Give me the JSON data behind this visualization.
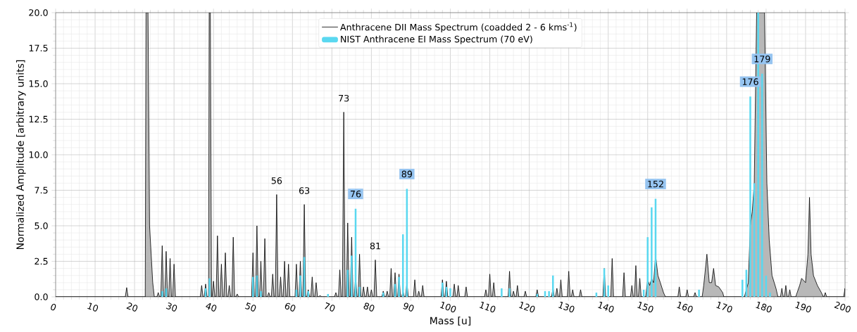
{
  "chart_data": {
    "type": "area",
    "xlabel": "Mass [u]",
    "ylabel": "Normalized Amplitude [arbitrary units]",
    "xlim": [
      0,
      200
    ],
    "ylim": [
      0,
      20
    ],
    "xticks": [
      0,
      10,
      20,
      30,
      40,
      50,
      60,
      70,
      80,
      90,
      100,
      110,
      120,
      130,
      140,
      150,
      160,
      170,
      180,
      190,
      200
    ],
    "yticks": [
      {
        "value": 0,
        "label": "0.0"
      },
      {
        "value": 2.5,
        "label": "2.5"
      },
      {
        "value": 5,
        "label": "5.0"
      },
      {
        "value": 7.5,
        "label": "7.5"
      },
      {
        "value": 10,
        "label": "10.0"
      },
      {
        "value": 12.5,
        "label": "12.5"
      },
      {
        "value": 15,
        "label": "15.0"
      },
      {
        "value": 17.5,
        "label": "17.5"
      },
      {
        "value": 20,
        "label": "20.0"
      }
    ],
    "grid": true,
    "legend": "top",
    "series": [
      {
        "name": "Anthracene DII Mass Spectrum (coadded 2 - 6 kms$^{-1}$)",
        "color": "#000000",
        "x": [
          0,
          17.65,
          18,
          18.35,
          22.7,
          22.9,
          23.4,
          23.8,
          24.1,
          24.3,
          24.6,
          25,
          25.65,
          26,
          26.35,
          26.65,
          27,
          27.35,
          27.65,
          28,
          28.35,
          28.65,
          29,
          29.35,
          29.65,
          30,
          30.35,
          36.65,
          37,
          37.35,
          37.65,
          38,
          38.35,
          38.75,
          38.9,
          39.2,
          39.5,
          39.65,
          40,
          40.35,
          40.65,
          41,
          41.35,
          41.65,
          42,
          42.35,
          42.65,
          43,
          43.35,
          43.65,
          44,
          44.35,
          44.65,
          45,
          45.35,
          45.65,
          46,
          46.35,
          49.65,
          50,
          50.35,
          50.65,
          51,
          51.35,
          51.65,
          52,
          52.35,
          52.65,
          53,
          53.35,
          53.65,
          54,
          54.35,
          54.65,
          55,
          55.35,
          55.65,
          56,
          56.35,
          56.65,
          57,
          57.35,
          57.65,
          58,
          58.35,
          58.65,
          59,
          59.35,
          60.65,
          61,
          61.35,
          61.65,
          62,
          62.35,
          62.65,
          63,
          63.35,
          63.65,
          64,
          64.35,
          64.65,
          65,
          65.35,
          65.65,
          66,
          66.35,
          66.65,
          67,
          67.35,
          70.65,
          71,
          71.35,
          71.65,
          72,
          72.35,
          72.65,
          73,
          73.35,
          73.65,
          74,
          74.35,
          74.65,
          75,
          75.35,
          75.65,
          76,
          76.35,
          76.65,
          77,
          77.35,
          77.65,
          78,
          78.35,
          78.65,
          79,
          79.35,
          79.65,
          80,
          80.35,
          80.65,
          81,
          81.35,
          82.65,
          83,
          83.35,
          83.65,
          84,
          84.35,
          84.65,
          85,
          85.35,
          85.65,
          86,
          86.35,
          86.65,
          87,
          87.35,
          87.65,
          88,
          88.35,
          88.65,
          89,
          89.35,
          90.65,
          91,
          91.35,
          91.65,
          92,
          92.35,
          92.65,
          93,
          93.35,
          97.65,
          98,
          98.35,
          98.65,
          99,
          99.35,
          100.65,
          101,
          101.35,
          101.65,
          102,
          102.35,
          103.65,
          104,
          104.35,
          108.65,
          109,
          109.35,
          109.65,
          110,
          110.35,
          110.65,
          111,
          111.35,
          114.65,
          115,
          115.35,
          115.65,
          116,
          116.35,
          116.65,
          117,
          117.35,
          118.65,
          119,
          119.35,
          121.65,
          122,
          122.35,
          125.65,
          126,
          126.35,
          126.65,
          127,
          127.35,
          127.65,
          128,
          128.35,
          129.65,
          130,
          130.35,
          130.65,
          131,
          131.35,
          132.65,
          133,
          133.35,
          138.65,
          139,
          139.35,
          140.65,
          141,
          141.35,
          143.65,
          144,
          144.35,
          145.65,
          146,
          146.35,
          146.65,
          147,
          147.35,
          147.65,
          148,
          148.35,
          149.5,
          150,
          150.5,
          151,
          151.5,
          152,
          152.6,
          153.2,
          154,
          154.5,
          157.65,
          158,
          158.35,
          159.65,
          160,
          160.35,
          161.65,
          162,
          162.35,
          163.8,
          164.2,
          165,
          165.6,
          166.2,
          166.7,
          167.2,
          168,
          169,
          169.3,
          174.5,
          175.5,
          176,
          176.5,
          177,
          177.6,
          179.6,
          180.2,
          180.8,
          181.5,
          182.5,
          183,
          183.65,
          184,
          184.35,
          184.65,
          185,
          185.35,
          185.65,
          186,
          186.35,
          187.5,
          188.5,
          189,
          190,
          190.6,
          191,
          191.4,
          192,
          193,
          194,
          194.5,
          194.65,
          195,
          195.35,
          199.65,
          200
        ],
        "values": [
          0,
          0,
          0.65,
          0,
          0,
          20,
          20,
          5,
          3.5,
          2.5,
          1.0,
          0,
          0,
          0.3,
          0,
          0,
          3.6,
          0,
          0,
          3.2,
          0,
          0,
          2.7,
          0,
          0,
          2.3,
          0,
          0,
          0.8,
          0,
          0,
          0.9,
          0,
          0,
          20,
          20,
          0,
          0,
          1.1,
          0,
          0,
          4.3,
          0,
          0,
          2.3,
          0,
          0,
          3.1,
          0,
          0,
          0.8,
          0,
          0,
          4.2,
          0,
          0,
          0.2,
          0,
          0,
          3.1,
          0,
          0,
          5.0,
          0,
          0,
          2.5,
          0,
          0,
          4.1,
          0,
          0,
          0.3,
          0,
          0,
          1.6,
          0,
          0,
          7.2,
          0,
          0,
          1.4,
          0,
          0,
          2.5,
          0,
          0,
          2.3,
          0,
          0,
          2.3,
          0,
          0,
          2.5,
          0,
          0,
          6.5,
          0,
          0,
          0.5,
          0,
          0,
          1.4,
          0,
          0,
          1.0,
          0,
          0,
          0.1,
          0,
          0,
          0.3,
          0,
          0,
          1.9,
          0,
          0,
          13.0,
          0,
          0,
          5.2,
          0,
          0,
          4.2,
          0,
          0,
          1.4,
          0,
          0,
          3.0,
          0,
          0,
          0.7,
          0,
          0,
          0.7,
          0,
          0,
          0.5,
          0,
          0,
          2.6,
          0,
          0,
          0.4,
          0,
          0,
          0.4,
          0,
          0,
          2.0,
          0,
          0,
          1.7,
          0,
          0,
          1.6,
          0,
          0,
          0.4,
          0,
          0,
          1.0,
          0,
          0,
          1.2,
          0,
          0,
          0.4,
          0,
          0,
          0.8,
          0,
          0,
          1.2,
          0,
          0,
          1.1,
          0,
          0,
          0.9,
          0,
          0,
          0.8,
          0,
          0,
          0.7,
          0,
          0,
          0.5,
          0,
          0,
          1.6,
          0,
          0,
          1.0,
          0,
          0,
          1.8,
          0,
          0,
          0.4,
          0,
          0,
          0.8,
          0,
          0,
          0.4,
          0,
          0,
          0.5,
          0,
          0,
          0.6,
          0,
          0,
          0.6,
          0,
          0,
          1.2,
          0,
          0,
          1.8,
          0,
          0,
          0.5,
          0,
          0,
          0.5,
          0,
          0,
          2.0,
          0,
          0,
          2.7,
          0,
          0,
          1.7,
          0,
          0,
          0.8,
          0,
          0,
          2.2,
          0,
          0,
          1.3,
          0,
          0,
          1.2,
          0.8,
          1.3,
          1.0,
          2.9,
          1.5,
          1.0,
          0.3,
          0,
          0,
          0.7,
          0,
          0,
          0.5,
          0,
          0,
          0.3,
          0,
          0,
          0.8,
          3.0,
          1.0,
          1.0,
          2.0,
          0.8,
          0.7,
          0.3,
          0,
          0,
          1.0,
          5.0,
          6.0,
          8.0,
          20,
          20,
          8.0,
          4.0,
          1.5,
          0.6,
          0,
          0,
          0.6,
          0,
          0,
          0.8,
          0,
          0,
          0.5,
          0,
          0,
          0.8,
          1.3,
          1.0,
          3.0,
          7.0,
          3.0,
          1.5,
          0.8,
          0.3,
          0,
          0,
          0.3,
          0,
          0,
          0.6
        ]
      },
      {
        "name": "NIST Anthracene EI Mass Spectrum (70 eV)",
        "type": "bar",
        "color": "#5ad8f0",
        "x": [
          27,
          28,
          38,
          39,
          50,
          51,
          52,
          61,
          62,
          63,
          64,
          69,
          74,
          75,
          76,
          77,
          83,
          86,
          87,
          88,
          89,
          98,
          99,
          100,
          113,
          115,
          122,
          124,
          125,
          126,
          137,
          139,
          140,
          149,
          150,
          151,
          152,
          163,
          174,
          175,
          176,
          177,
          178,
          179,
          180,
          181
        ],
        "values": [
          0.4,
          0.6,
          0.6,
          1.3,
          1.4,
          1.5,
          0.4,
          0.5,
          1.5,
          2.8,
          0.4,
          0.2,
          1.9,
          2.9,
          6.2,
          0.7,
          0.3,
          0.9,
          1.4,
          4.4,
          7.6,
          1.0,
          0.7,
          0.6,
          0.6,
          0.6,
          0.2,
          0.4,
          0.4,
          1.5,
          0.3,
          2.0,
          0.8,
          0.5,
          4.2,
          6.3,
          6.9,
          0.5,
          1.2,
          1.9,
          14.1,
          8.0,
          20,
          15.7,
          1.5,
          0.3
        ]
      }
    ],
    "annotations": [
      {
        "text": "56",
        "x": 56,
        "y": 7.2
      },
      {
        "text": "63",
        "x": 63,
        "y": 6.5
      },
      {
        "text": "73",
        "x": 73,
        "y": 13.0
      },
      {
        "text": "81",
        "x": 81,
        "y": 2.6
      },
      {
        "text": "76",
        "x": 76,
        "y": 6.2
      },
      {
        "text": "89",
        "x": 89,
        "y": 7.6
      },
      {
        "text": "152",
        "x": 152,
        "y": 6.9
      },
      {
        "text": "176",
        "x": 176,
        "y": 14.1
      },
      {
        "text": "179",
        "x": 179,
        "y": 15.7
      }
    ]
  }
}
